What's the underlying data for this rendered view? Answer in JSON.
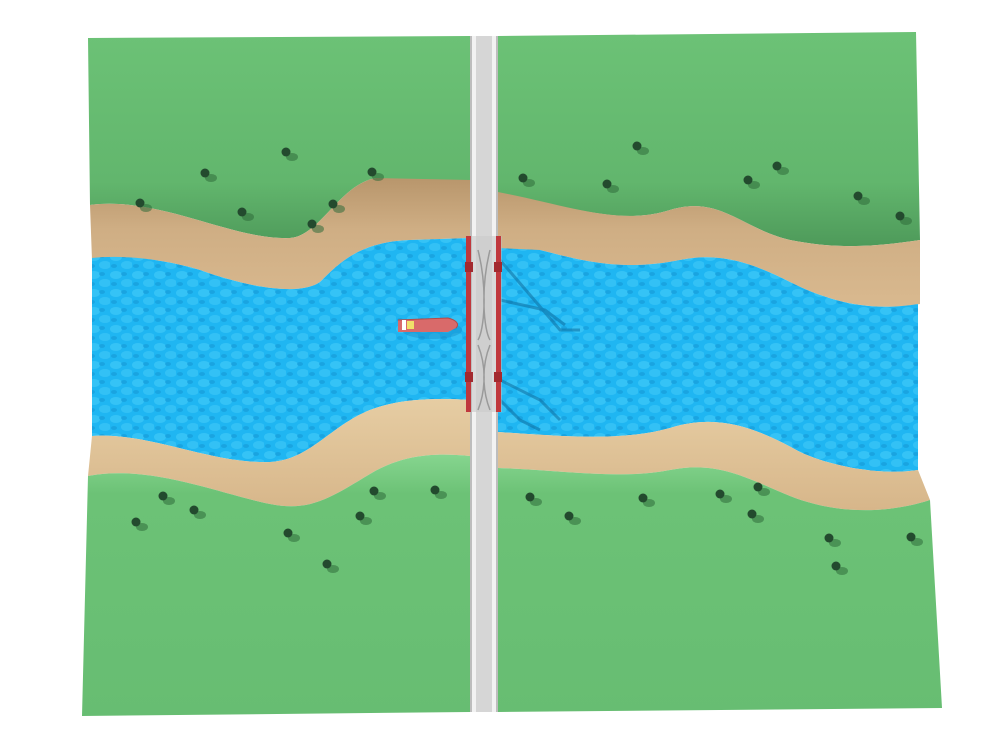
{
  "scene": {
    "description_visible_text": "",
    "colors": {
      "background": "#ffffff",
      "grass": "#6cc276",
      "grass_dark": "#4f9a5a",
      "sand": "#d9b98f",
      "sand_dark": "#b8966c",
      "water": "#1fb6f2",
      "water_dark": "#1393cf",
      "road": "#d9d9d9",
      "road_edge": "#f4f4f4",
      "bridge_red": "#c0383d",
      "boat_hull": "#d96a6a",
      "tree": "#234a2e"
    },
    "icons": [
      "boat-icon",
      "tree-icon",
      "bridge-icon"
    ]
  }
}
